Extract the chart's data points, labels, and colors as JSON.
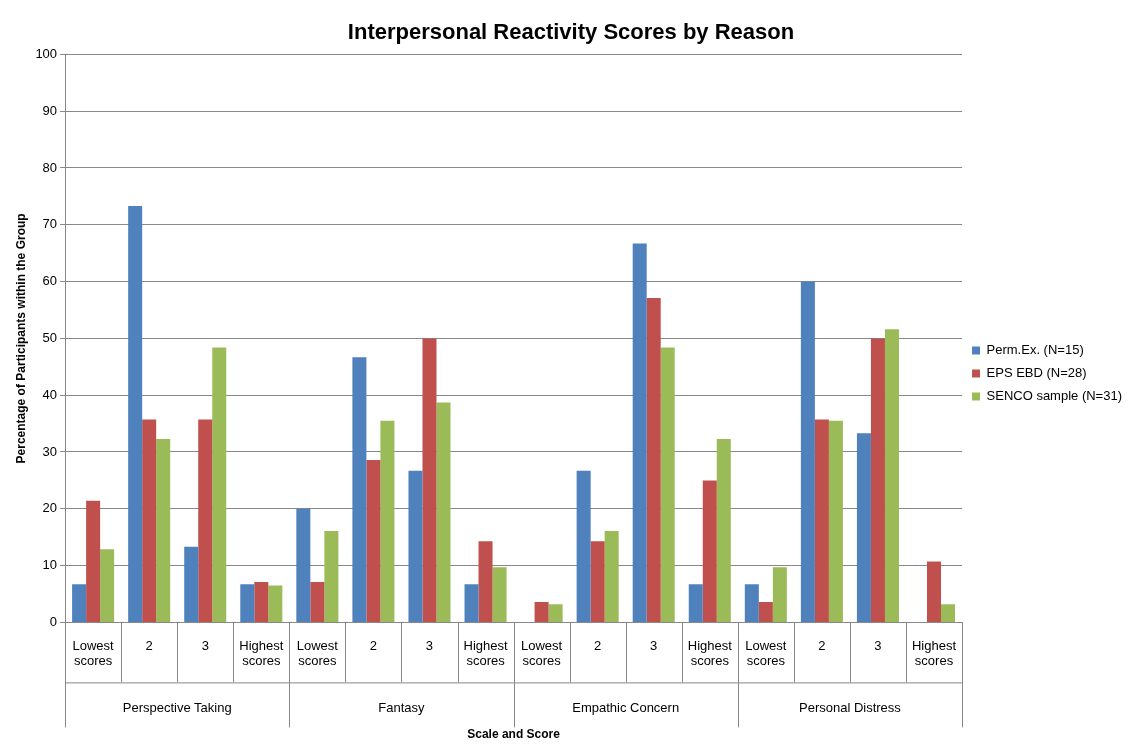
{
  "chart_data": {
    "type": "bar",
    "title": "Interpersonal Reactivity Scores by Reason",
    "xlabel": "Scale and Score",
    "ylabel": "Percentage of Participants within the Group",
    "categories": [
      "Lowest scores",
      "2",
      "3",
      "Highest scores",
      "Lowest scores",
      "2",
      "3",
      "Highest scores",
      "Lowest scores",
      "2",
      "3",
      "Highest scores",
      "Lowest scores",
      "2",
      "3",
      "Highest scores"
    ],
    "series": [
      {
        "name": "Perm.Ex. (N=15)",
        "color": "#4f81bd",
        "values": [
          6.7,
          73.3,
          13.3,
          6.7,
          20,
          46.7,
          26.7,
          6.7,
          0,
          26.7,
          66.7,
          6.7,
          6.7,
          60,
          33.3,
          0
        ]
      },
      {
        "name": "EPS EBD (N=28)",
        "color": "#c0504d",
        "values": [
          21.4,
          35.7,
          35.7,
          7.1,
          7.1,
          28.6,
          50,
          14.3,
          3.6,
          14.3,
          57.1,
          25,
          3.6,
          35.7,
          50,
          10.7
        ]
      },
      {
        "name": "SENCO sample (N=31)",
        "color": "#9bbb59",
        "values": [
          12.9,
          32.3,
          48.4,
          6.5,
          16.1,
          35.5,
          38.7,
          9.7,
          3.2,
          16.1,
          48.4,
          32.3,
          9.7,
          35.5,
          51.6,
          3.2
        ]
      }
    ],
    "annotations": [
      "Perspective Taking",
      "Fantasy",
      "Empathic Concern",
      "Personal Distress"
    ],
    "ylim": [
      0,
      100
    ],
    "yticks": [
      0,
      10,
      20,
      30,
      40,
      50,
      60,
      70,
      80,
      90,
      100
    ],
    "grid": "y",
    "legend": "right"
  }
}
